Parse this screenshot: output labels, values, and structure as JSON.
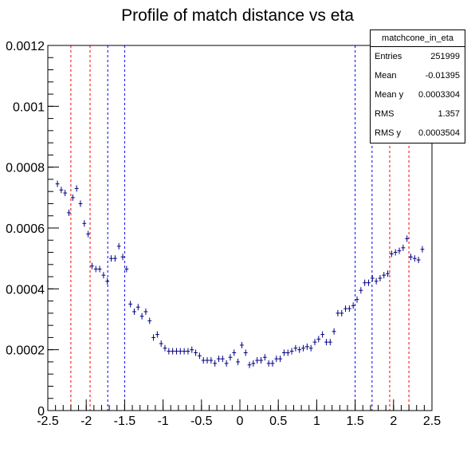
{
  "chart_data": {
    "type": "scatter",
    "title": "Profile of match distance vs eta",
    "xlabel": "",
    "ylabel": "",
    "xlim": [
      -2.5,
      2.5
    ],
    "ylim": [
      0,
      0.0012
    ],
    "x_ticks": [
      "-2.5",
      "-2",
      "-1.5",
      "-1",
      "-0.5",
      "0",
      "0.5",
      "1",
      "1.5",
      "2",
      "2.5"
    ],
    "y_ticks": [
      "0",
      "0.0002",
      "0.0004",
      "0.0006",
      "0.0008",
      "0.001",
      "0.0012"
    ],
    "marker_color": "#000080",
    "series": [
      {
        "points": [
          [
            -2.375,
            0.000745
          ],
          [
            -2.325,
            0.000725
          ],
          [
            -2.275,
            0.000715
          ],
          [
            -2.225,
            0.00065
          ],
          [
            -2.175,
            0.0007
          ],
          [
            -2.125,
            0.00073
          ],
          [
            -2.075,
            0.00068
          ],
          [
            -2.025,
            0.000615
          ],
          [
            -1.975,
            0.00058
          ],
          [
            -1.925,
            0.000475
          ],
          [
            -1.875,
            0.000465
          ],
          [
            -1.825,
            0.000465
          ],
          [
            -1.775,
            0.000445
          ],
          [
            -1.725,
            0.000425
          ],
          [
            -1.675,
            0.0005
          ],
          [
            -1.625,
            0.0005
          ],
          [
            -1.575,
            0.00054
          ],
          [
            -1.525,
            0.000505
          ],
          [
            -1.475,
            0.000465
          ],
          [
            -1.425,
            0.00035
          ],
          [
            -1.375,
            0.000325
          ],
          [
            -1.325,
            0.00034
          ],
          [
            -1.275,
            0.00031
          ],
          [
            -1.225,
            0.000325
          ],
          [
            -1.175,
            0.000295
          ],
          [
            -1.125,
            0.00024
          ],
          [
            -1.075,
            0.00025
          ],
          [
            -1.025,
            0.00022
          ],
          [
            -0.975,
            0.000205
          ],
          [
            -0.925,
            0.000195
          ],
          [
            -0.875,
            0.000195
          ],
          [
            -0.825,
            0.000195
          ],
          [
            -0.775,
            0.000195
          ],
          [
            -0.725,
            0.000195
          ],
          [
            -0.675,
            0.000195
          ],
          [
            -0.625,
            0.0002
          ],
          [
            -0.575,
            0.00019
          ],
          [
            -0.525,
            0.00018
          ],
          [
            -0.475,
            0.000165
          ],
          [
            -0.425,
            0.000165
          ],
          [
            -0.375,
            0.000165
          ],
          [
            -0.325,
            0.000155
          ],
          [
            -0.275,
            0.00017
          ],
          [
            -0.225,
            0.00017
          ],
          [
            -0.175,
            0.000155
          ],
          [
            -0.125,
            0.000175
          ],
          [
            -0.075,
            0.00019
          ],
          [
            -0.025,
            0.00016
          ],
          [
            0.025,
            0.000215
          ],
          [
            0.075,
            0.00019
          ],
          [
            0.125,
            0.00015
          ],
          [
            0.175,
            0.000155
          ],
          [
            0.225,
            0.000165
          ],
          [
            0.275,
            0.000165
          ],
          [
            0.325,
            0.000175
          ],
          [
            0.375,
            0.000155
          ],
          [
            0.425,
            0.000155
          ],
          [
            0.475,
            0.00017
          ],
          [
            0.525,
            0.00017
          ],
          [
            0.575,
            0.00019
          ],
          [
            0.625,
            0.00019
          ],
          [
            0.675,
            0.000195
          ],
          [
            0.725,
            0.000205
          ],
          [
            0.775,
            0.0002
          ],
          [
            0.825,
            0.000205
          ],
          [
            0.875,
            0.00021
          ],
          [
            0.925,
            0.000205
          ],
          [
            0.975,
            0.000225
          ],
          [
            1.025,
            0.000235
          ],
          [
            1.075,
            0.00025
          ],
          [
            1.125,
            0.000225
          ],
          [
            1.175,
            0.000225
          ],
          [
            1.225,
            0.00026
          ],
          [
            1.275,
            0.00032
          ],
          [
            1.325,
            0.00032
          ],
          [
            1.375,
            0.000335
          ],
          [
            1.425,
            0.000335
          ],
          [
            1.475,
            0.000345
          ],
          [
            1.525,
            0.000365
          ],
          [
            1.575,
            0.000395
          ],
          [
            1.625,
            0.00042
          ],
          [
            1.675,
            0.00042
          ],
          [
            1.725,
            0.000435
          ],
          [
            1.775,
            0.000425
          ],
          [
            1.825,
            0.000435
          ],
          [
            1.875,
            0.000445
          ],
          [
            1.925,
            0.00045
          ],
          [
            1.975,
            0.000515
          ],
          [
            2.025,
            0.00052
          ],
          [
            2.075,
            0.000525
          ],
          [
            2.125,
            0.000535
          ],
          [
            2.175,
            0.000565
          ],
          [
            2.225,
            0.000505
          ],
          [
            2.275,
            0.0005
          ],
          [
            2.325,
            0.000495
          ],
          [
            2.375,
            0.00053
          ]
        ]
      }
    ],
    "vertical_lines": [
      {
        "x": -2.2,
        "color": "#ff0000"
      },
      {
        "x": -1.95,
        "color": "#ff0000"
      },
      {
        "x": -1.72,
        "color": "#0000ff"
      },
      {
        "x": -1.5,
        "color": "#0000ff"
      },
      {
        "x": 1.5,
        "color": "#0000ff"
      },
      {
        "x": 1.72,
        "color": "#0000ff"
      },
      {
        "x": 1.95,
        "color": "#ff0000"
      },
      {
        "x": 2.2,
        "color": "#ff0000"
      }
    ]
  },
  "stats": {
    "name": "matchcone_in_eta",
    "rows": [
      {
        "key": "Entries",
        "value": "251999"
      },
      {
        "key": "Mean",
        "value": "-0.01395"
      },
      {
        "key": "Mean y",
        "value": "0.0003304"
      },
      {
        "key": "RMS",
        "value": "1.357"
      },
      {
        "key": "RMS y",
        "value": "0.0003504"
      }
    ]
  }
}
